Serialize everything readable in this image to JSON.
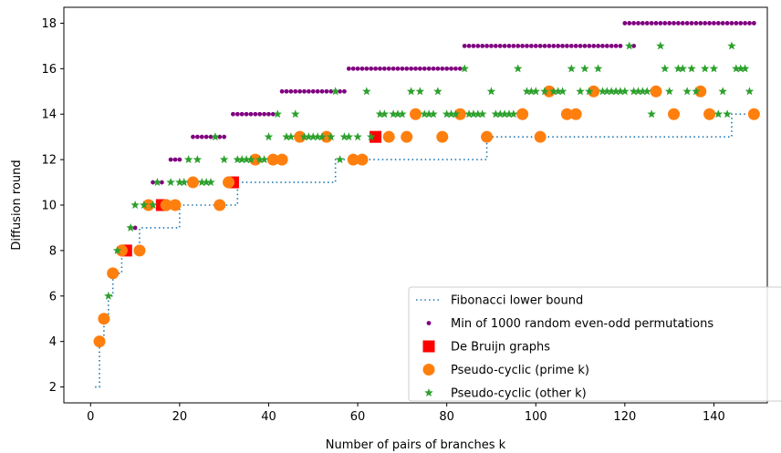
{
  "chart_data": {
    "type": "scatter",
    "xlabel": "Number of pairs of branches k",
    "ylabel": "Diffusion round",
    "xlim": [
      -6,
      152
    ],
    "ylim": [
      1.3,
      18.7
    ],
    "xticks": [
      0,
      20,
      40,
      60,
      80,
      100,
      120,
      140
    ],
    "yticks": [
      2,
      4,
      6,
      8,
      10,
      12,
      14,
      16,
      18
    ],
    "grid": false,
    "legend_position": "bottom-right",
    "series": [
      {
        "name": "Fibonacci lower bound",
        "style": "dotted-line",
        "color": "#1f77b4",
        "steps": [
          [
            1,
            2
          ],
          [
            2,
            4
          ],
          [
            3,
            5
          ],
          [
            4,
            6
          ],
          [
            5,
            7
          ],
          [
            7,
            8
          ],
          [
            11,
            9
          ],
          [
            20,
            10
          ],
          [
            33,
            11
          ],
          [
            55,
            12
          ],
          [
            89,
            13
          ],
          [
            144,
            14
          ],
          [
            148,
            14
          ]
        ]
      },
      {
        "name": "Min of 1000 random even-odd permutations",
        "marker": "dot",
        "color": "#800080",
        "ranges": [
          [
            9,
            10,
            9
          ],
          [
            14,
            16,
            11
          ],
          [
            18,
            20,
            12
          ],
          [
            23,
            30,
            13
          ],
          [
            32,
            41,
            14
          ],
          [
            43,
            57,
            15
          ],
          [
            58,
            83,
            16
          ],
          [
            84,
            119,
            17
          ],
          [
            121,
            149,
            18
          ]
        ],
        "points": [
          [
            120,
            18
          ],
          [
            122,
            17
          ]
        ]
      },
      {
        "name": "De Bruijn graphs",
        "marker": "square",
        "color": "#ff0000",
        "points": [
          [
            8,
            8
          ],
          [
            16,
            10
          ],
          [
            32,
            11
          ],
          [
            64,
            13
          ]
        ]
      },
      {
        "name": "Pseudo-cyclic (prime k)",
        "marker": "circle",
        "color": "#ff7f0e",
        "points": [
          [
            2,
            4
          ],
          [
            3,
            5
          ],
          [
            5,
            7
          ],
          [
            7,
            8
          ],
          [
            11,
            8
          ],
          [
            13,
            10
          ],
          [
            17,
            10
          ],
          [
            19,
            10
          ],
          [
            23,
            11
          ],
          [
            29,
            10
          ],
          [
            31,
            11
          ],
          [
            37,
            12
          ],
          [
            41,
            12
          ],
          [
            43,
            12
          ],
          [
            47,
            13
          ],
          [
            53,
            13
          ],
          [
            59,
            12
          ],
          [
            61,
            12
          ],
          [
            67,
            13
          ],
          [
            71,
            13
          ],
          [
            73,
            14
          ],
          [
            79,
            13
          ],
          [
            83,
            14
          ],
          [
            89,
            13
          ],
          [
            97,
            14
          ],
          [
            101,
            13
          ],
          [
            103,
            15
          ],
          [
            107,
            14
          ],
          [
            109,
            14
          ],
          [
            113,
            15
          ],
          [
            127,
            15
          ],
          [
            131,
            14
          ],
          [
            137,
            15
          ],
          [
            139,
            14
          ],
          [
            149,
            14
          ]
        ]
      },
      {
        "name": "Pseudo-cyclic (other k)",
        "marker": "star",
        "color": "#2ca02c",
        "points": [
          [
            4,
            6
          ],
          [
            6,
            8
          ],
          [
            9,
            9
          ],
          [
            10,
            10
          ],
          [
            12,
            10
          ],
          [
            14,
            10
          ],
          [
            15,
            11
          ],
          [
            18,
            11
          ],
          [
            20,
            11
          ],
          [
            21,
            11
          ],
          [
            22,
            12
          ],
          [
            24,
            12
          ],
          [
            25,
            11
          ],
          [
            26,
            11
          ],
          [
            27,
            11
          ],
          [
            28,
            13
          ],
          [
            30,
            12
          ],
          [
            33,
            12
          ],
          [
            34,
            12
          ],
          [
            35,
            12
          ],
          [
            36,
            12
          ],
          [
            38,
            12
          ],
          [
            39,
            12
          ],
          [
            40,
            13
          ],
          [
            42,
            14
          ],
          [
            44,
            13
          ],
          [
            45,
            13
          ],
          [
            46,
            14
          ],
          [
            48,
            13
          ],
          [
            49,
            13
          ],
          [
            50,
            13
          ],
          [
            51,
            13
          ],
          [
            52,
            13
          ],
          [
            54,
            13
          ],
          [
            55,
            15
          ],
          [
            56,
            12
          ],
          [
            57,
            13
          ],
          [
            58,
            13
          ],
          [
            60,
            13
          ],
          [
            62,
            15
          ],
          [
            63,
            13
          ],
          [
            65,
            14
          ],
          [
            66,
            14
          ],
          [
            68,
            14
          ],
          [
            69,
            14
          ],
          [
            70,
            14
          ],
          [
            72,
            15
          ],
          [
            74,
            15
          ],
          [
            75,
            14
          ],
          [
            76,
            14
          ],
          [
            77,
            14
          ],
          [
            78,
            15
          ],
          [
            80,
            14
          ],
          [
            81,
            14
          ],
          [
            82,
            14
          ],
          [
            84,
            16
          ],
          [
            85,
            14
          ],
          [
            86,
            14
          ],
          [
            87,
            14
          ],
          [
            88,
            14
          ],
          [
            90,
            15
          ],
          [
            91,
            14
          ],
          [
            92,
            14
          ],
          [
            93,
            14
          ],
          [
            94,
            14
          ],
          [
            95,
            14
          ],
          [
            96,
            16
          ],
          [
            98,
            15
          ],
          [
            99,
            15
          ],
          [
            100,
            15
          ],
          [
            102,
            15
          ],
          [
            104,
            15
          ],
          [
            105,
            15
          ],
          [
            106,
            15
          ],
          [
            108,
            16
          ],
          [
            110,
            15
          ],
          [
            111,
            16
          ],
          [
            112,
            15
          ],
          [
            114,
            16
          ],
          [
            115,
            15
          ],
          [
            116,
            15
          ],
          [
            117,
            15
          ],
          [
            118,
            15
          ],
          [
            119,
            15
          ],
          [
            120,
            15
          ],
          [
            121,
            17
          ],
          [
            122,
            15
          ],
          [
            123,
            15
          ],
          [
            124,
            15
          ],
          [
            125,
            15
          ],
          [
            126,
            14
          ],
          [
            128,
            17
          ],
          [
            129,
            16
          ],
          [
            130,
            15
          ],
          [
            132,
            16
          ],
          [
            133,
            16
          ],
          [
            134,
            15
          ],
          [
            135,
            16
          ],
          [
            136,
            15
          ],
          [
            138,
            16
          ],
          [
            140,
            16
          ],
          [
            141,
            14
          ],
          [
            142,
            15
          ],
          [
            143,
            14
          ],
          [
            144,
            17
          ],
          [
            145,
            16
          ],
          [
            146,
            16
          ],
          [
            147,
            16
          ],
          [
            148,
            15
          ]
        ]
      }
    ]
  }
}
